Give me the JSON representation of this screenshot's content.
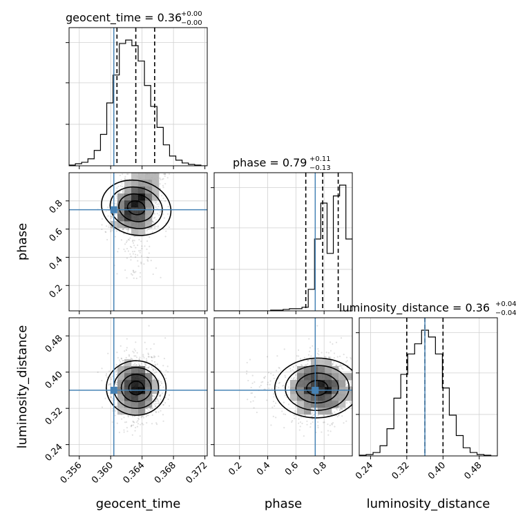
{
  "chart_data": {
    "type": "corner",
    "parameters": [
      "geocent_time",
      "phase",
      "luminosity_distance"
    ],
    "truths": {
      "geocent_time": 0.3604,
      "phase": 0.737,
      "luminosity_distance": 0.36
    },
    "truth_color": "#4682b4",
    "titles": [
      {
        "param": "geocent_time",
        "text": "geocent_time = 0.36",
        "sup": "+0.00",
        "sub": "−0.00"
      },
      {
        "param": "phase",
        "text": "phase = 0.79",
        "sup": "+0.11",
        "sub": "−0.13"
      },
      {
        "param": "luminosity_distance",
        "text": "luminosity_distance = 0.36",
        "sup": "+0.04",
        "sub": "−0.04"
      }
    ],
    "axes": {
      "geocent_time": {
        "range": [
          0.3547,
          0.3723
        ],
        "ticks": [
          "0.356",
          "0.360",
          "0.364",
          "0.368",
          "0.372"
        ]
      },
      "phase": {
        "range": [
          0.02,
          1.0
        ],
        "ticks": [
          "0.2",
          "0.4",
          "0.6",
          "0.8"
        ]
      },
      "luminosity_distance": {
        "range": [
          0.215,
          0.52
        ],
        "ticks": [
          "0.24",
          "0.32",
          "0.40",
          "0.48"
        ]
      }
    },
    "quantiles": {
      "geocent_time": [
        0.3608,
        0.3632,
        0.3656
      ],
      "phase": [
        0.67,
        0.79,
        0.9
      ],
      "luminosity_distance": [
        0.32,
        0.36,
        0.4
      ]
    },
    "histograms": {
      "geocent_time": {
        "edges_start": 0.3547,
        "bin_width": 0.0008,
        "counts": [
          1,
          3,
          5,
          10,
          22,
          45,
          90,
          130,
          175,
          180,
          172,
          150,
          115,
          85,
          55,
          30,
          14,
          8,
          4,
          2,
          1,
          0
        ]
      },
      "phase": {
        "edges_start": 0.02,
        "bin_width": 0.0445,
        "counts": [
          0,
          0,
          0,
          0,
          0,
          0,
          0,
          0,
          0,
          1,
          1,
          2,
          3,
          3,
          5,
          30,
          100,
          150,
          80,
          160,
          175,
          100
        ]
      },
      "luminosity_distance": {
        "edges_start": 0.215,
        "bin_width": 0.0153,
        "counts": [
          1,
          2,
          5,
          15,
          40,
          85,
          120,
          150,
          165,
          185,
          175,
          150,
          100,
          60,
          30,
          12,
          5,
          2,
          1,
          0
        ]
      }
    }
  },
  "axis_labels": {
    "geocent_time": "geocent_time",
    "phase": "phase",
    "luminosity_distance": "luminosity_distance"
  }
}
